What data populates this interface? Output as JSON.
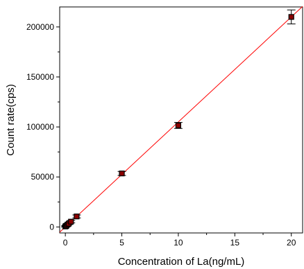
{
  "chart_data": {
    "type": "scatter",
    "title": "",
    "xlabel": "Concentration of La(ng/mL)",
    "ylabel": "Count rate(cps)",
    "xlim": [
      -0.5,
      21
    ],
    "ylim": [
      -6000,
      220000
    ],
    "xticks": [
      0,
      5,
      10,
      15,
      20
    ],
    "xtick_labels": [
      "0",
      "5",
      "10",
      "15",
      "20"
    ],
    "yticks": [
      0,
      50000,
      100000,
      150000,
      200000
    ],
    "ytick_labels": [
      "0",
      "50000",
      "100000",
      "150000",
      "200000"
    ],
    "grid": false,
    "legend": "none",
    "series": [
      {
        "x": [
          0,
          0.05,
          0.1,
          0.2,
          0.3,
          0.5,
          1,
          5,
          10,
          20
        ],
        "y": [
          500,
          900,
          1300,
          2400,
          3300,
          5300,
          10500,
          53500,
          101500,
          210000
        ],
        "error": [
          600,
          600,
          700,
          800,
          900,
          1200,
          1500,
          2000,
          3000,
          7000
        ],
        "marker": "square",
        "color": "#000000",
        "marker_fill": "#8b0000"
      }
    ],
    "fit_line": {
      "x": [
        -0.5,
        21
      ],
      "slope": 10500,
      "intercept": 0,
      "color": "#ff0000"
    }
  }
}
